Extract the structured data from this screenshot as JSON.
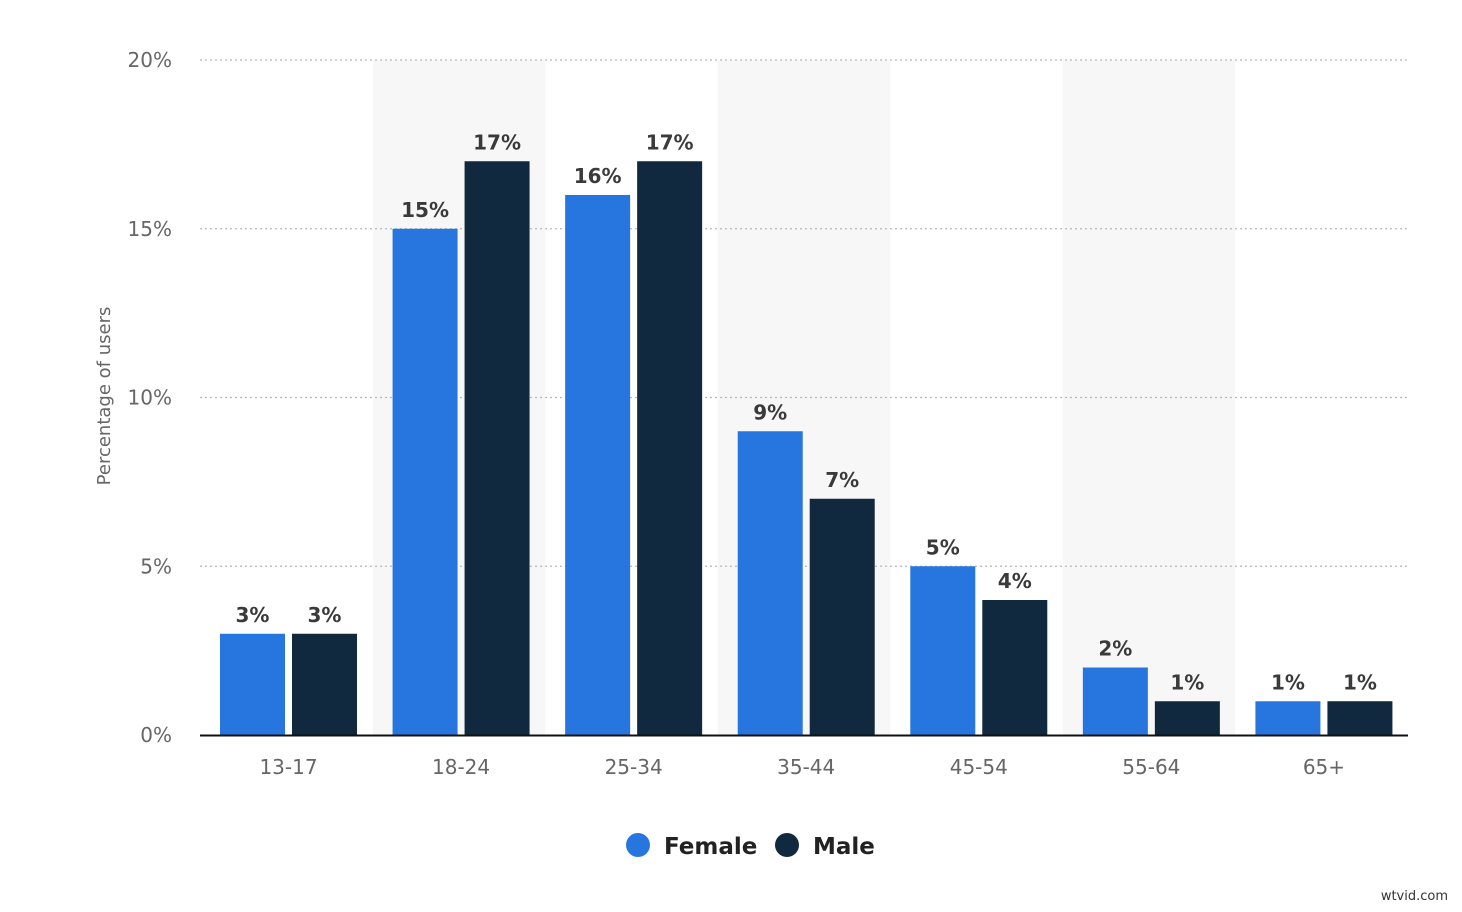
{
  "colors": {
    "female": "#2776df",
    "male": "#10293f",
    "band": "#f7f7f7",
    "grid": "#b8b8b8",
    "axis": "#111111"
  },
  "chart_data": {
    "type": "bar",
    "title": "",
    "xlabel": "",
    "ylabel": "Percentage of users",
    "ylim": [
      0,
      20
    ],
    "yticks": [
      0,
      5,
      10,
      15,
      20
    ],
    "ytick_labels": [
      "0%",
      "5%",
      "10%",
      "15%",
      "20%"
    ],
    "categories": [
      "13-17",
      "18-24",
      "25-34",
      "35-44",
      "45-54",
      "55-64",
      "65+"
    ],
    "series": [
      {
        "name": "Female",
        "values": [
          3,
          15,
          16,
          9,
          5,
          2,
          1
        ],
        "labels": [
          "3%",
          "15%",
          "16%",
          "9%",
          "5%",
          "2%",
          "1%"
        ]
      },
      {
        "name": "Male",
        "values": [
          3,
          17,
          17,
          7,
          4,
          1,
          1
        ],
        "labels": [
          "3%",
          "17%",
          "17%",
          "7%",
          "4%",
          "1%",
          "1%"
        ]
      }
    ],
    "legend": {
      "position": "bottom-center"
    },
    "grid": true
  },
  "watermark": "wtvid.com"
}
